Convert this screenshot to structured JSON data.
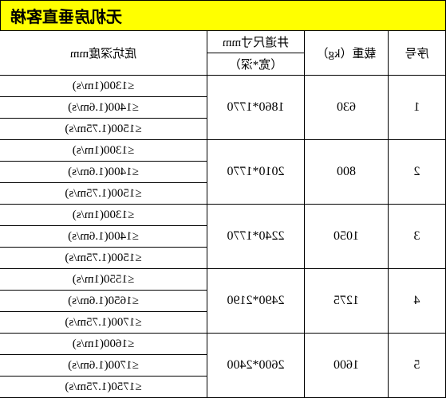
{
  "title": "无机房垂直客梯",
  "headers": {
    "seq": "序号",
    "weight": "载重（kg）",
    "shaft_main": "井道尺寸mm",
    "shaft_sub": "（宽*深）",
    "pit": "底坑深度mm"
  },
  "rows": [
    {
      "seq": "1",
      "weight": "630",
      "shaft": "1860*1770",
      "pits": [
        "≤1300(1m/s)",
        "≤1400(1.6m/s)",
        "≤1500(1.75m/s)"
      ]
    },
    {
      "seq": "2",
      "weight": "800",
      "shaft": "2010*1770",
      "pits": [
        "≤1300(1m/s)",
        "≤1400(1.6m/s)",
        "≤1500(1.75m/s)"
      ]
    },
    {
      "seq": "3",
      "weight": "1050",
      "shaft": "2240*1770",
      "pits": [
        "≤1300(1m/s)",
        "≤1400(1.6m/s)",
        "≤1500(1.75m/s)"
      ]
    },
    {
      "seq": "4",
      "weight": "1275",
      "shaft": "2490*2190",
      "pits": [
        "≤1550(1m/s)",
        "≤1650(1.6m/s)",
        "≤1700(1.75m/s)"
      ]
    },
    {
      "seq": "5",
      "weight": "1600",
      "shaft": "2600*2400",
      "pits": [
        "≤1600(1m/s)",
        "≤1700(1.6m/s)",
        "≤1750(1.75m/s)"
      ]
    }
  ],
  "colors": {
    "title_bg": "#ffff00",
    "border": "#000000",
    "text": "#000000",
    "bg": "#ffffff"
  }
}
